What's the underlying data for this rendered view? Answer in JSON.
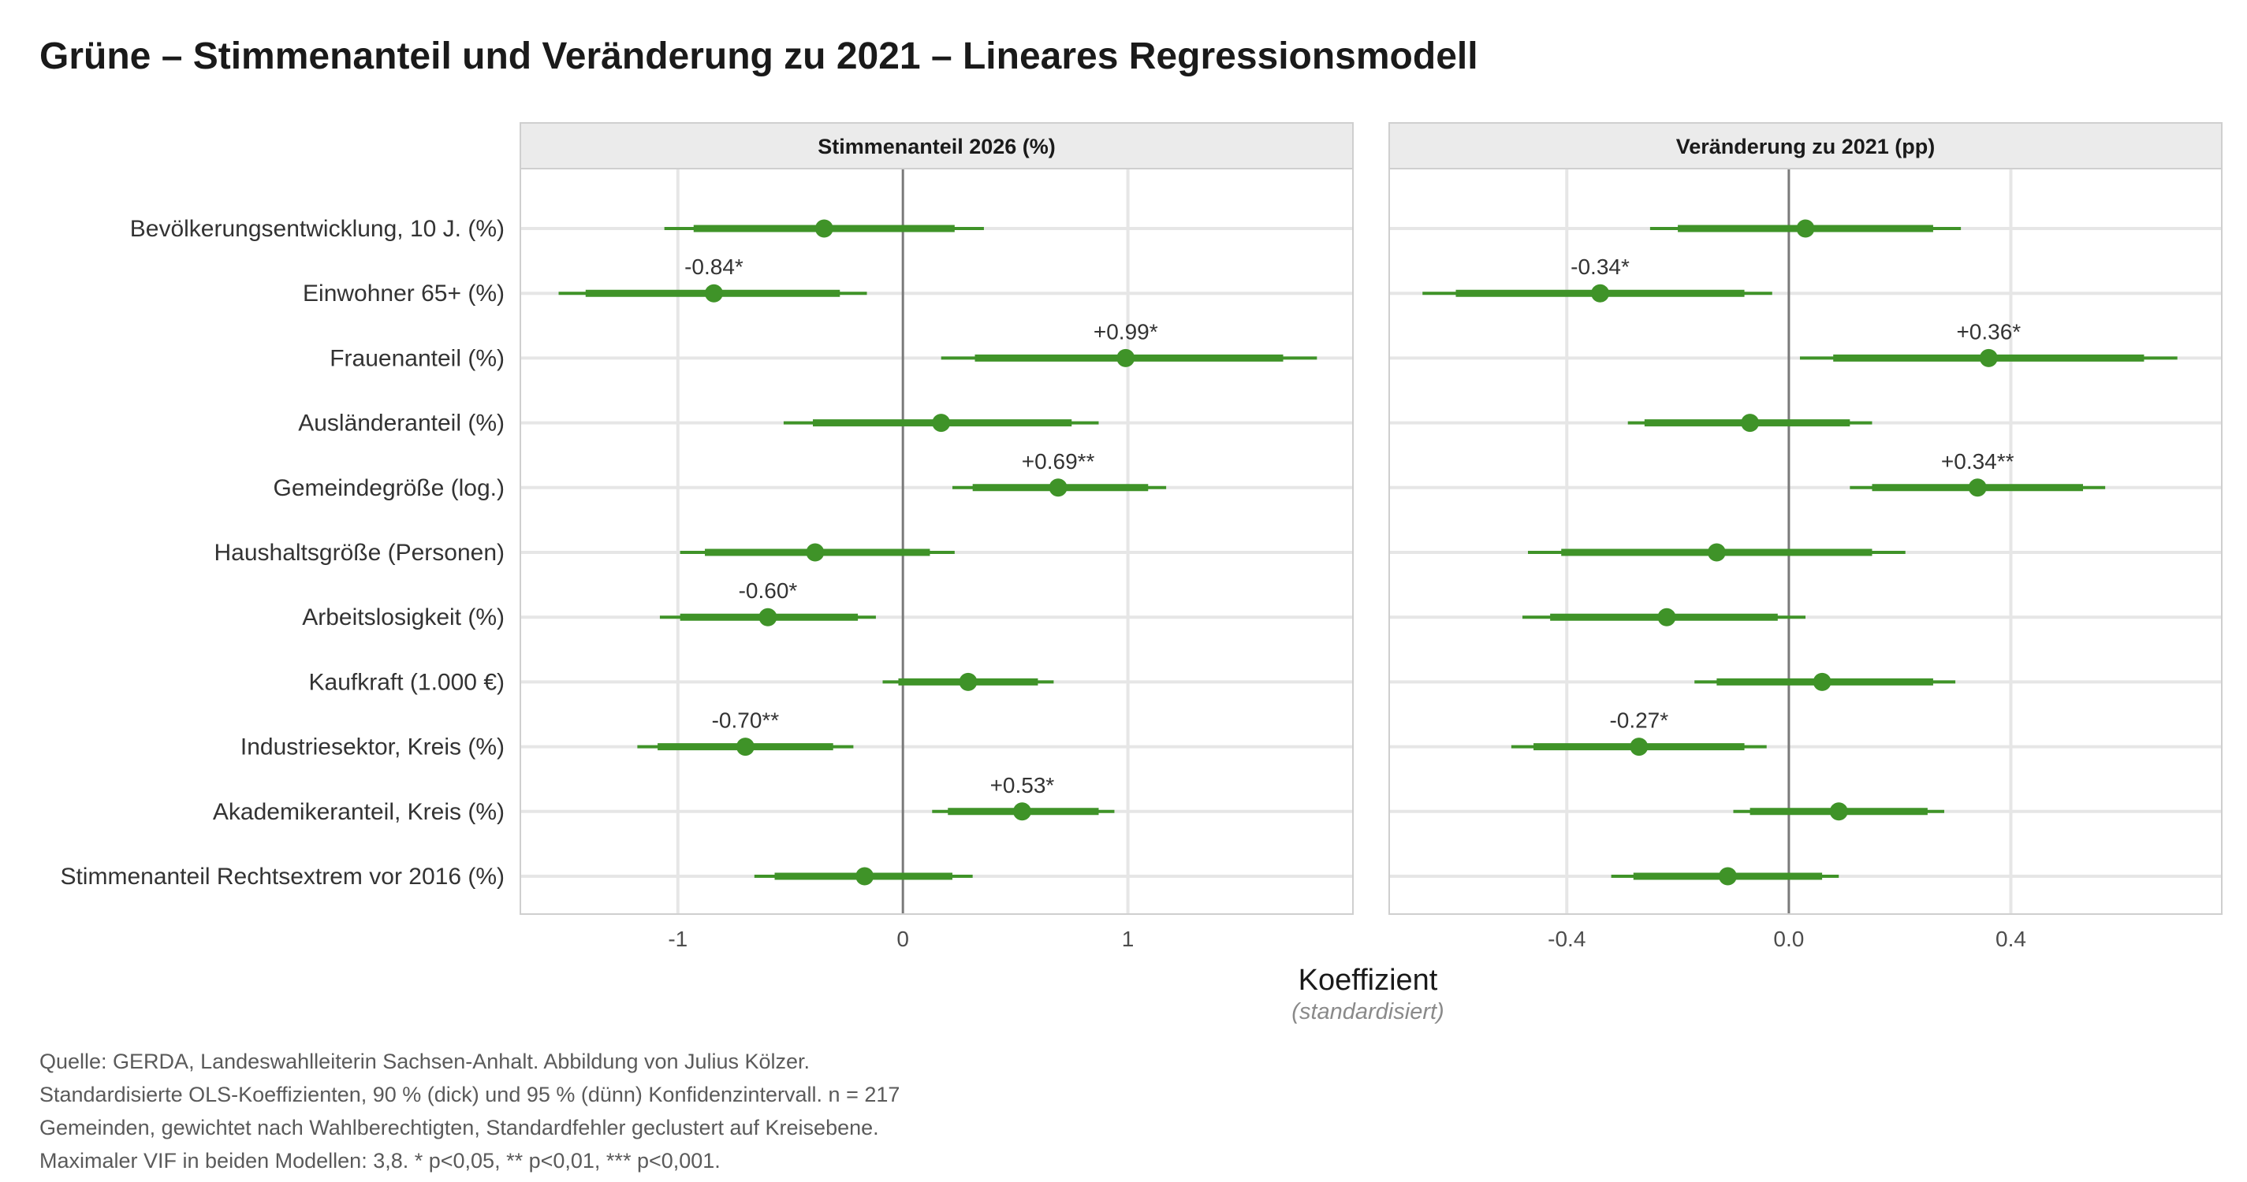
{
  "title": "Grüne – Stimmenanteil und Veränderung zu 2021 – Lineares Regressionsmodell",
  "caption": "Quelle: GERDA, Landeswahlleiterin Sachsen-Anhalt. Abbildung von Julius Kölzer. Standardisierte OLS-Koeffizienten, 90 % (dick) und 95 % (dünn) Konfidenzintervall. n = 217 Gemeinden, gewichtet nach Wahlberechtigten, Standardfehler geclustert auf Kreisebene. Maximaler VIF in beiden Modellen: 3,8. * p<0,05, ** p<0,01, *** p<0,001.",
  "colors": {
    "point": "#3f9328",
    "zero_line": "#7a7a7a",
    "grid": "#e6e6e6",
    "strip": "#ebebeb"
  },
  "chart_data": {
    "type": "coefficient-plot",
    "xlabel": "Koeffizient",
    "xlabel_sub": "(standardisiert)",
    "terms": [
      "Bevölkerungsentwicklung, 10 J. (%)",
      "Einwohner 65+ (%)",
      "Frauenanteil (%)",
      "Ausländeranteil (%)",
      "Gemeindegröße (log.)",
      "Haushaltsgröße (Personen)",
      "Arbeitslosigkeit (%)",
      "Kaufkraft (1.000 €)",
      "Industriesektor, Kreis (%)",
      "Akademikeranteil, Kreis (%)",
      "Stimmenanteil Rechtsextrem vor 2016 (%)"
    ],
    "panels": [
      {
        "title": "Stimmenanteil 2026 (%)",
        "xlim": [
          -1.7,
          2.0
        ],
        "ticks": [
          -1,
          0,
          1
        ],
        "tick_labels": [
          "-1",
          "0",
          "1"
        ],
        "estimates": [
          {
            "est": -0.35,
            "lo90": -0.93,
            "hi90": 0.23,
            "lo95": -1.06,
            "hi95": 0.36,
            "label": ""
          },
          {
            "est": -0.84,
            "lo90": -1.41,
            "hi90": -0.28,
            "lo95": -1.53,
            "hi95": -0.16,
            "label": "-0.84*"
          },
          {
            "est": 0.99,
            "lo90": 0.32,
            "hi90": 1.69,
            "lo95": 0.17,
            "hi95": 1.84,
            "label": "+0.99*"
          },
          {
            "est": 0.17,
            "lo90": -0.4,
            "hi90": 0.75,
            "lo95": -0.53,
            "hi95": 0.87,
            "label": ""
          },
          {
            "est": 0.69,
            "lo90": 0.31,
            "hi90": 1.09,
            "lo95": 0.22,
            "hi95": 1.17,
            "label": "+0.69**"
          },
          {
            "est": -0.39,
            "lo90": -0.88,
            "hi90": 0.12,
            "lo95": -0.99,
            "hi95": 0.23,
            "label": ""
          },
          {
            "est": -0.6,
            "lo90": -0.99,
            "hi90": -0.2,
            "lo95": -1.08,
            "hi95": -0.12,
            "label": "-0.60*"
          },
          {
            "est": 0.29,
            "lo90": -0.02,
            "hi90": 0.6,
            "lo95": -0.09,
            "hi95": 0.67,
            "label": ""
          },
          {
            "est": -0.7,
            "lo90": -1.09,
            "hi90": -0.31,
            "lo95": -1.18,
            "hi95": -0.22,
            "label": "-0.70**"
          },
          {
            "est": 0.53,
            "lo90": 0.2,
            "hi90": 0.87,
            "lo95": 0.13,
            "hi95": 0.94,
            "label": "+0.53*"
          },
          {
            "est": -0.17,
            "lo90": -0.57,
            "hi90": 0.22,
            "lo95": -0.66,
            "hi95": 0.31,
            "label": ""
          }
        ]
      },
      {
        "title": "Veränderung zu 2021 (pp)",
        "xlim": [
          -0.72,
          0.78
        ],
        "ticks": [
          -0.4,
          0.0,
          0.4
        ],
        "tick_labels": [
          "-0.4",
          "0.0",
          "0.4"
        ],
        "estimates": [
          {
            "est": 0.03,
            "lo90": -0.2,
            "hi90": 0.26,
            "lo95": -0.25,
            "hi95": 0.31,
            "label": ""
          },
          {
            "est": -0.34,
            "lo90": -0.6,
            "hi90": -0.08,
            "lo95": -0.66,
            "hi95": -0.03,
            "label": "-0.34*"
          },
          {
            "est": 0.36,
            "lo90": 0.08,
            "hi90": 0.64,
            "lo95": 0.02,
            "hi95": 0.7,
            "label": "+0.36*"
          },
          {
            "est": -0.07,
            "lo90": -0.26,
            "hi90": 0.11,
            "lo95": -0.29,
            "hi95": 0.15,
            "label": ""
          },
          {
            "est": 0.34,
            "lo90": 0.15,
            "hi90": 0.53,
            "lo95": 0.11,
            "hi95": 0.57,
            "label": "+0.34**"
          },
          {
            "est": -0.13,
            "lo90": -0.41,
            "hi90": 0.15,
            "lo95": -0.47,
            "hi95": 0.21,
            "label": ""
          },
          {
            "est": -0.22,
            "lo90": -0.43,
            "hi90": -0.02,
            "lo95": -0.48,
            "hi95": 0.03,
            "label": ""
          },
          {
            "est": 0.06,
            "lo90": -0.13,
            "hi90": 0.26,
            "lo95": -0.17,
            "hi95": 0.3,
            "label": ""
          },
          {
            "est": -0.27,
            "lo90": -0.46,
            "hi90": -0.08,
            "lo95": -0.5,
            "hi95": -0.04,
            "label": "-0.27*"
          },
          {
            "est": 0.09,
            "lo90": -0.07,
            "hi90": 0.25,
            "lo95": -0.1,
            "hi95": 0.28,
            "label": ""
          },
          {
            "est": -0.11,
            "lo90": -0.28,
            "hi90": 0.06,
            "lo95": -0.32,
            "hi95": 0.09,
            "label": ""
          }
        ]
      }
    ]
  }
}
